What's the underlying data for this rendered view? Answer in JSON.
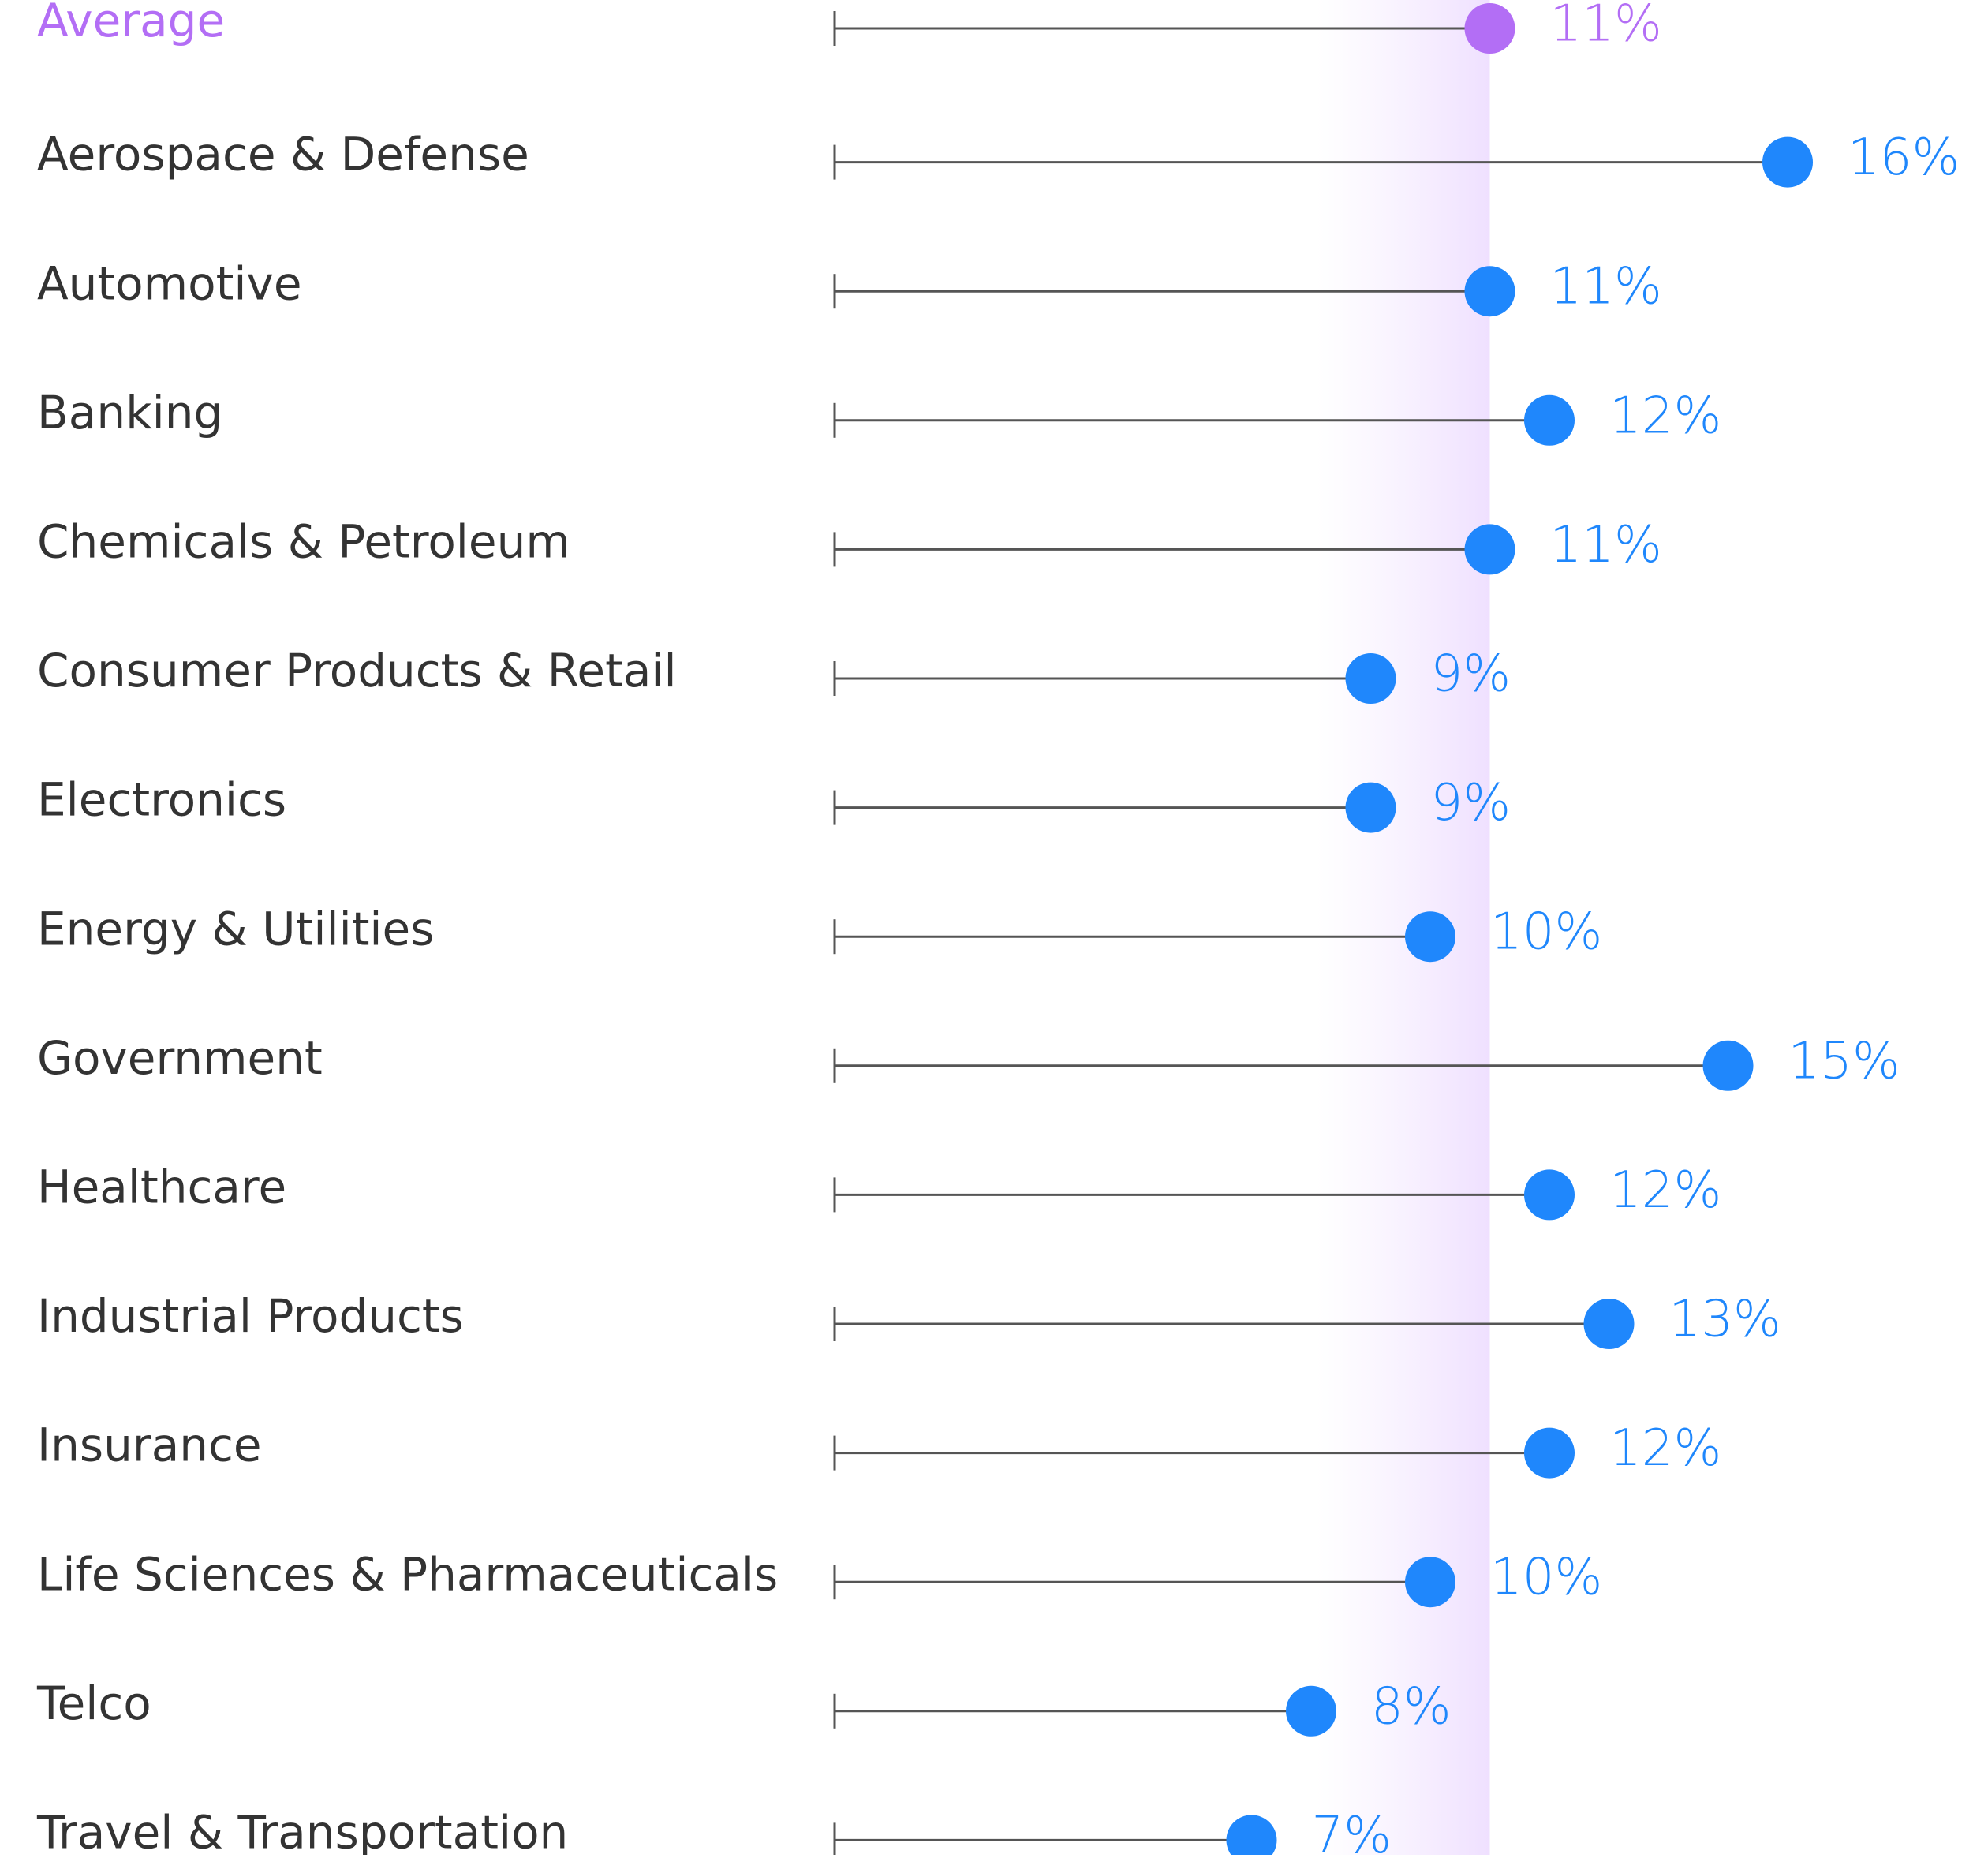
{
  "chart_data": {
    "type": "lollipop",
    "average": {
      "label": "Average",
      "value": 11,
      "value_label": "11%",
      "color": "#b36ef5"
    },
    "categories": [
      "Aerospace & Defense",
      "Automotive",
      "Banking",
      "Chemicals & Petroleum",
      "Consumer Products & Retail",
      "Electronics",
      "Energy & Utilities",
      "Government",
      "Healthcare",
      "Industrial Products",
      "Insurance",
      "Life Sciences & Pharmaceuticals",
      "Telco",
      "Travel & Transportation"
    ],
    "values": [
      16,
      11,
      12,
      11,
      9,
      9,
      10,
      15,
      12,
      13,
      12,
      10,
      8,
      7
    ],
    "value_labels": [
      "16%",
      "11%",
      "12%",
      "11%",
      "9%",
      "9%",
      "10%",
      "15%",
      "12%",
      "13%",
      "12%",
      "10%",
      "8%",
      "7%"
    ],
    "color": "#1f87fc",
    "xlim": [
      0,
      16
    ]
  }
}
